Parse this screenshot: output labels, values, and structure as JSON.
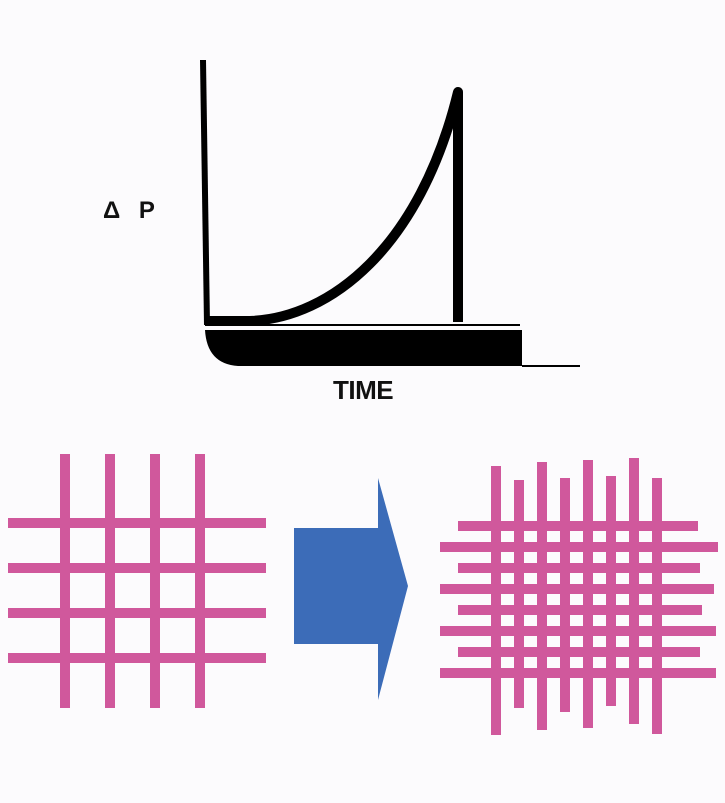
{
  "labels": {
    "delta_p": "Δ P",
    "time": "TIME"
  },
  "colors": {
    "background": "#fcfbfd",
    "curve": "#000000",
    "mesh": "#d0589c",
    "arrow": "#3c6cb8"
  },
  "mesh_before": {
    "vertical_strands": 4,
    "horizontal_strands": 4
  },
  "mesh_after": {
    "vertical_strands": 8,
    "horizontal_strands": 8
  }
}
